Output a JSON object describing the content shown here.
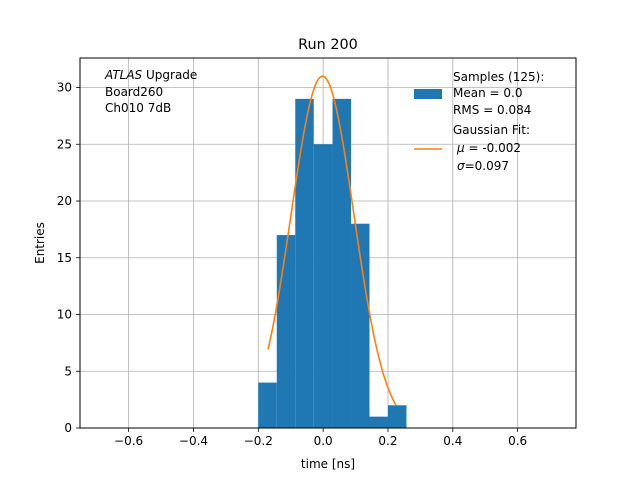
{
  "chart_data": {
    "type": "bar",
    "title": "Run 200",
    "xlabel": "time [ns]",
    "ylabel": "Entries",
    "xlim": [
      -0.75,
      0.78
    ],
    "ylim": [
      0,
      32.6
    ],
    "xticks": [
      -0.6,
      -0.4,
      -0.2,
      0.0,
      0.2,
      0.4,
      0.6
    ],
    "xtick_labels": [
      "−0.6",
      "−0.4",
      "−0.2",
      "0.0",
      "0.2",
      "0.4",
      "0.6"
    ],
    "yticks": [
      0,
      5,
      10,
      15,
      20,
      25,
      30
    ],
    "ytick_labels": [
      "0",
      "5",
      "10",
      "15",
      "20",
      "25",
      "30"
    ],
    "grid": true,
    "bins": [
      {
        "x0": -0.2,
        "x1": -0.143,
        "count": 4
      },
      {
        "x0": -0.143,
        "x1": -0.086,
        "count": 17
      },
      {
        "x0": -0.086,
        "x1": -0.029,
        "count": 29
      },
      {
        "x0": -0.029,
        "x1": 0.029,
        "count": 25
      },
      {
        "x0": 0.029,
        "x1": 0.086,
        "count": 29
      },
      {
        "x0": 0.086,
        "x1": 0.143,
        "count": 18
      },
      {
        "x0": 0.143,
        "x1": 0.2,
        "count": 1
      },
      {
        "x0": 0.2,
        "x1": 0.257,
        "count": 2
      }
    ],
    "fit": {
      "mu": -0.002,
      "sigma": 0.097,
      "amplitude": 31.0,
      "x_range": [
        -0.17,
        0.225
      ]
    },
    "colors": {
      "hist": "#1f77b4",
      "fit": "#ff7f0e",
      "grid": "#b0b0b0"
    },
    "annotation": {
      "italic": "ATLAS",
      "rest": " Upgrade",
      "line2": " Board260",
      "line3": " Ch010 7dB"
    },
    "legend": {
      "placement": "top-right",
      "samples_label": "Samples (125):",
      "samples_mean": " Mean = 0.0",
      "samples_rms": " RMS = 0.084",
      "fit_label": "Gaussian Fit:",
      "fit_mu_sym": "μ",
      "fit_mu_val": " = -0.002",
      "fit_sigma_sym": "σ",
      "fit_sigma_val": "=0.097"
    }
  }
}
